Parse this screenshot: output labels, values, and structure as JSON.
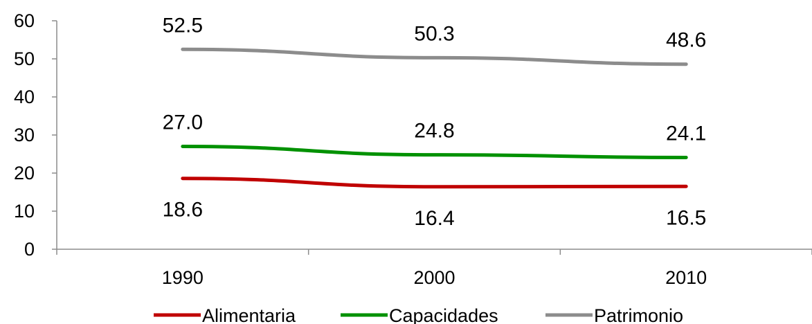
{
  "chart_data": {
    "type": "line",
    "title": "",
    "xlabel": "",
    "ylabel": "",
    "categories": [
      "1990",
      "2000",
      "2010"
    ],
    "ylim": [
      0,
      60
    ],
    "y_ticks": [
      "0",
      "10",
      "20",
      "30",
      "40",
      "50",
      "60"
    ],
    "grid": false,
    "legend_position": "bottom",
    "series": [
      {
        "name": "Alimentaria",
        "values": [
          18.6,
          16.4,
          16.5
        ],
        "labels": [
          "18.6",
          "16.4",
          "16.5"
        ],
        "color": "#c00000"
      },
      {
        "name": "Capacidades",
        "values": [
          27.0,
          24.8,
          24.1
        ],
        "labels": [
          "27.0",
          "24.8",
          "24.1"
        ],
        "color": "#009100"
      },
      {
        "name": "Patrimonio",
        "values": [
          52.5,
          50.3,
          48.6
        ],
        "labels": [
          "52.5",
          "50.3",
          "48.6"
        ],
        "color": "#8c8c8c"
      }
    ]
  }
}
